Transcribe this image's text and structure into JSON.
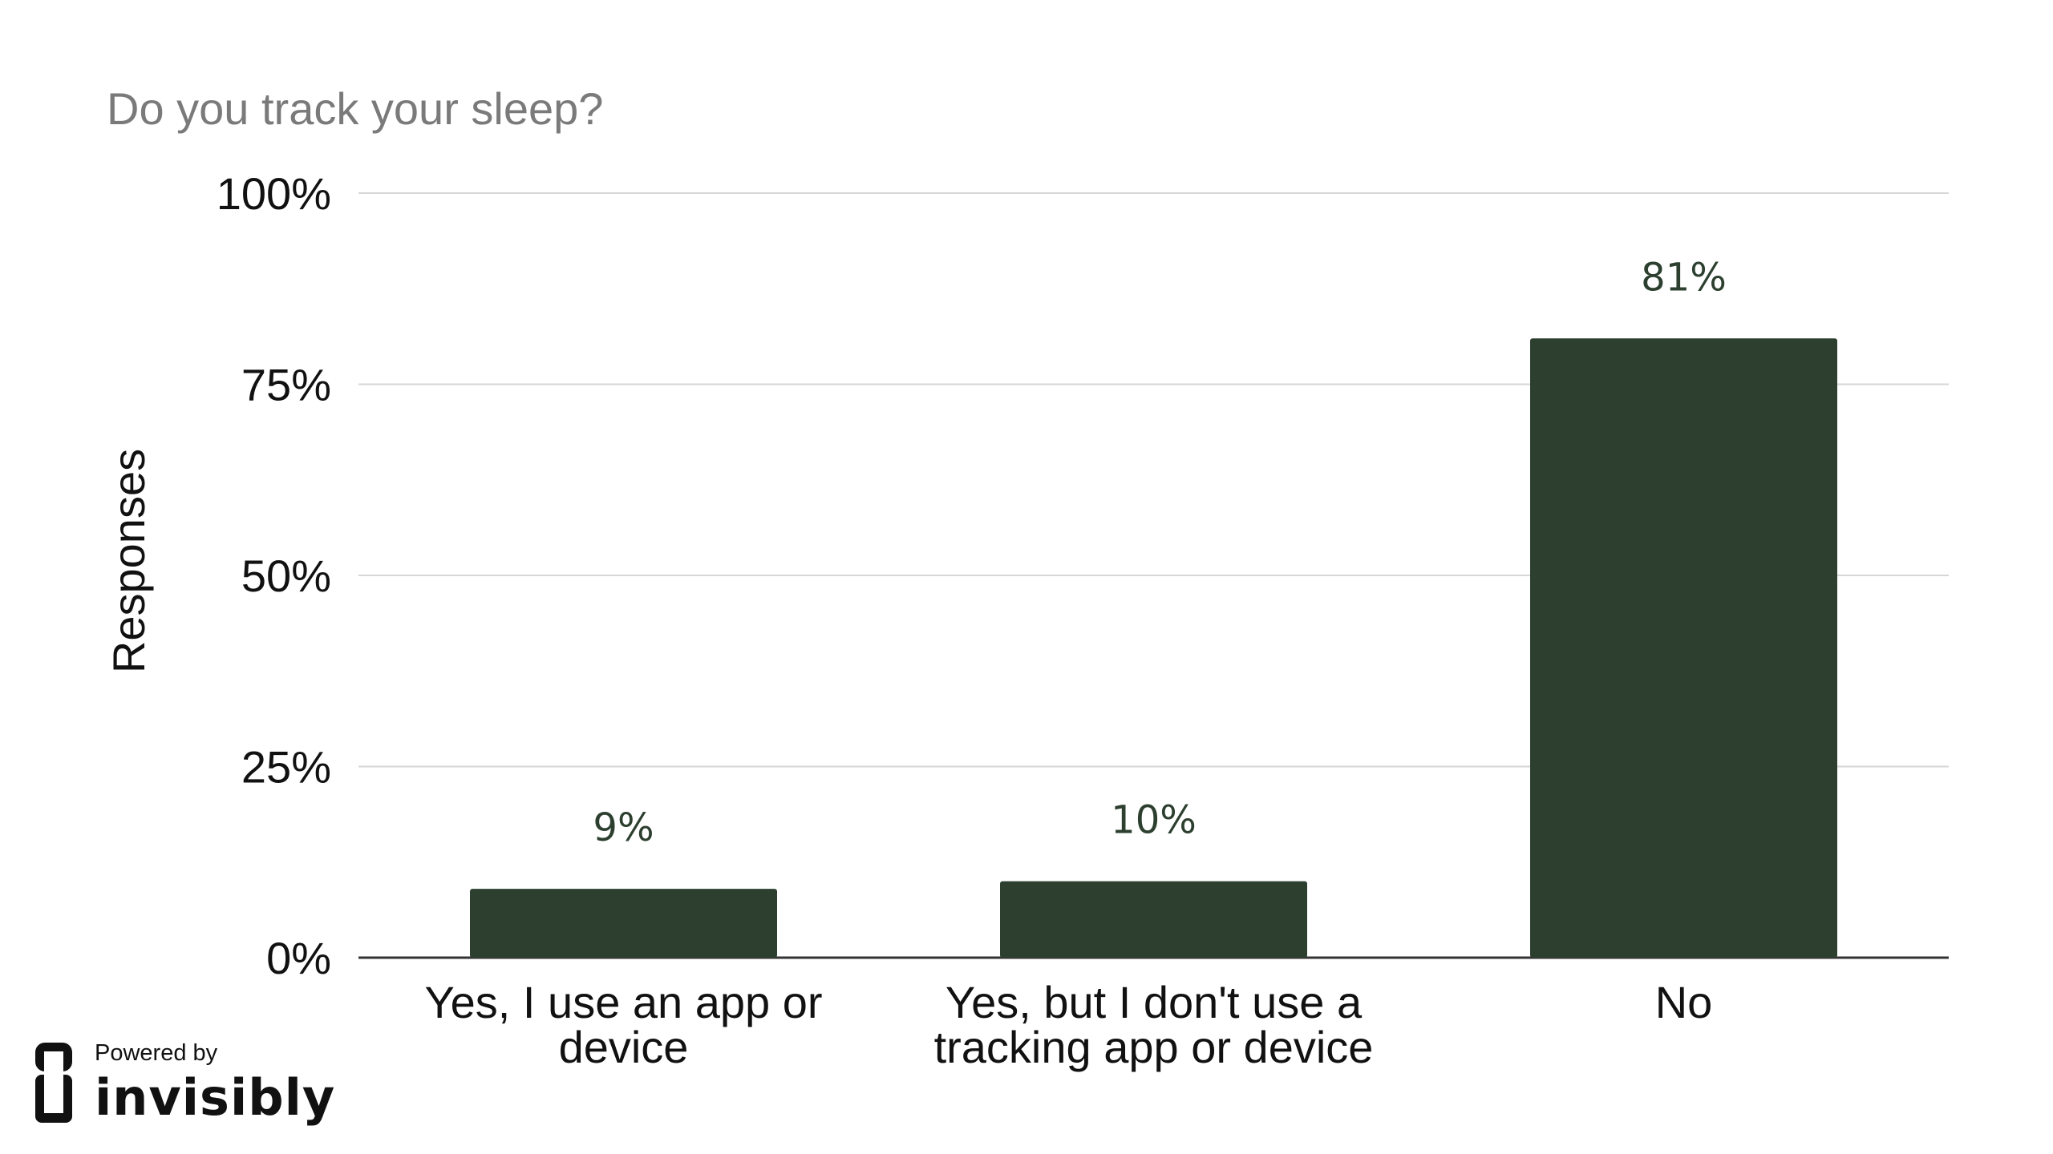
{
  "chart_data": {
    "type": "bar",
    "title": "Do you track your sleep?",
    "xlabel": "",
    "ylabel": "Responses",
    "categories": [
      [
        "Yes, I use an app or",
        "device"
      ],
      [
        "Yes, but I don't use a",
        "tracking app or device"
      ],
      [
        "No"
      ]
    ],
    "values": [
      9,
      10,
      81
    ],
    "value_labels": [
      "9%",
      "10%",
      "81%"
    ],
    "ylim": [
      0,
      100
    ],
    "yticks": [
      0,
      25,
      50,
      75,
      100
    ],
    "ytick_labels": [
      "0%",
      "25%",
      "50%",
      "75%",
      "100%"
    ],
    "grid": true,
    "legend": "none",
    "bar_color": "#2d4030"
  },
  "branding": {
    "powered_by": "Powered by",
    "name": "invisibly"
  }
}
